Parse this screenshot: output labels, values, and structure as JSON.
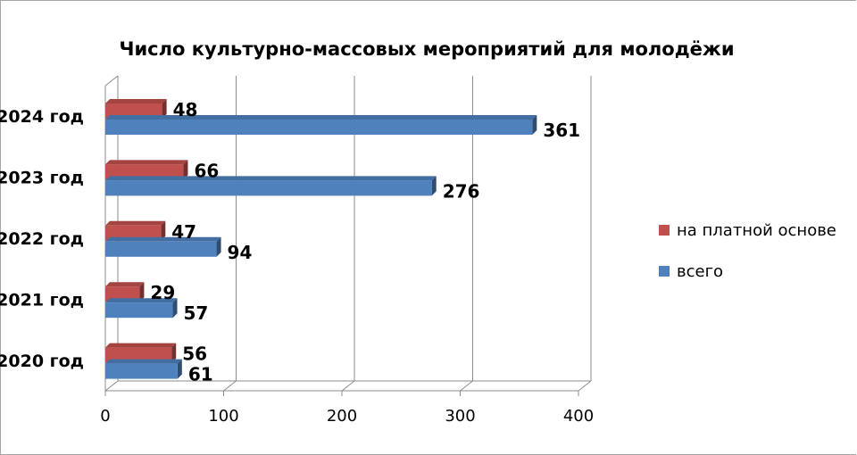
{
  "chart_data": {
    "type": "bar",
    "orientation": "horizontal",
    "title": "Число культурно-массовых мероприятий  для молодёжи",
    "categories": [
      "2024 год",
      "2023 год",
      "2022 год",
      "2021 год",
      "2020 год"
    ],
    "series": [
      {
        "name": "на платной основе",
        "values": [
          48,
          66,
          47,
          29,
          56
        ],
        "color": "#c0504d"
      },
      {
        "name": "всего",
        "values": [
          361,
          276,
          94,
          57,
          61
        ],
        "color": "#4f81bd"
      }
    ],
    "xlim": [
      0,
      400
    ],
    "xticks": [
      "0",
      "100",
      "200",
      "300",
      "400"
    ],
    "grid": true,
    "legend_position": "right",
    "legend_order": [
      0,
      1
    ]
  }
}
